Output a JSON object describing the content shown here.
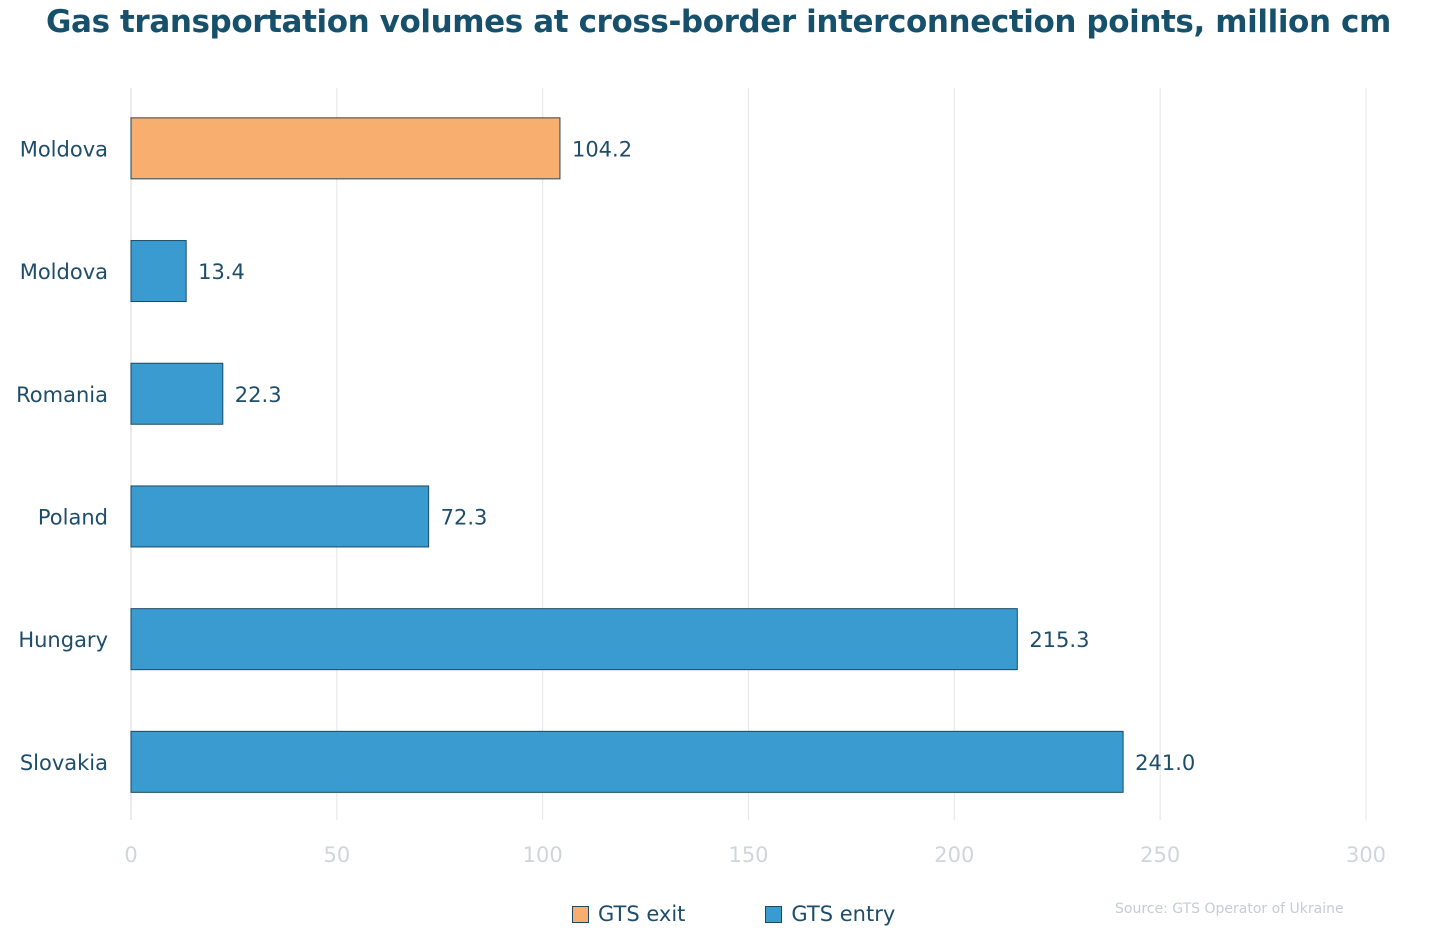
{
  "chart_data": {
    "type": "bar",
    "orientation": "horizontal",
    "title": "Gas transportation volumes at cross-border interconnection points, million cm",
    "categories": [
      "Moldova",
      "Moldova",
      "Romania",
      "Poland",
      "Hungary",
      "Slovakia"
    ],
    "series": [
      {
        "name": "GTS exit",
        "color": "#f7ae6e",
        "values": [
          104.2,
          null,
          null,
          null,
          null,
          null
        ]
      },
      {
        "name": "GTS entry",
        "color": "#3a9bd1",
        "values": [
          null,
          13.4,
          22.3,
          72.3,
          215.3,
          241.0
        ]
      }
    ],
    "value_labels": [
      "104.2",
      "13.4",
      "22.3",
      "72.3",
      "215.3",
      "241.0"
    ],
    "xlim": [
      0,
      300
    ],
    "x_ticks": [
      0,
      50,
      100,
      150,
      200,
      250,
      300
    ],
    "grid": true,
    "legend_position": "bottom"
  },
  "source_note": "Source: GTS Operator of Ukraine"
}
